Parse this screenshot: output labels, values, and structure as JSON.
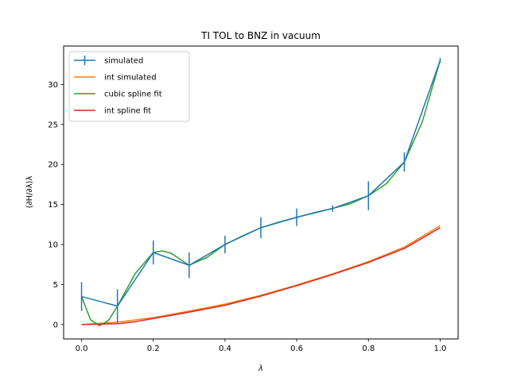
{
  "chart_data": {
    "type": "line",
    "title": "TI TOL to BNZ in vacuum",
    "xlabel": "λ",
    "ylabel": "⟨∂H/∂λ⟩λ",
    "xlim": [
      -0.05,
      1.05
    ],
    "ylim": [
      -1.8,
      34.8
    ],
    "x_ticks": [
      0.0,
      0.2,
      0.4,
      0.6,
      0.8,
      1.0
    ],
    "x_tick_labels": [
      "0.0",
      "0.2",
      "0.4",
      "0.6",
      "0.8",
      "1.0"
    ],
    "y_ticks": [
      0,
      5,
      10,
      15,
      20,
      25,
      30
    ],
    "y_tick_labels": [
      "0",
      "5",
      "10",
      "15",
      "20",
      "25",
      "30"
    ],
    "grid": false,
    "legend_position": "top-left",
    "series": [
      {
        "name": "simulated",
        "style": "errorbar",
        "color": "#1f77b4",
        "x": [
          0.0,
          0.1,
          0.2,
          0.3,
          0.4,
          0.5,
          0.6,
          0.7,
          0.8,
          0.9,
          1.0
        ],
        "y": [
          3.5,
          2.3,
          9.0,
          7.4,
          10.0,
          12.1,
          13.4,
          14.5,
          16.1,
          20.3,
          33.0
        ],
        "yerr": [
          1.8,
          2.1,
          1.5,
          1.6,
          1.1,
          1.3,
          1.1,
          0.4,
          1.8,
          1.2,
          0.3
        ]
      },
      {
        "name": "int simulated",
        "style": "line",
        "color": "#ff7f0e",
        "x": [
          0.0,
          0.1,
          0.2,
          0.3,
          0.4,
          0.5,
          0.6,
          0.7,
          0.8,
          0.9,
          1.0
        ],
        "y": [
          0.0,
          0.29,
          0.86,
          1.68,
          2.55,
          3.66,
          4.94,
          6.33,
          7.86,
          9.68,
          12.35
        ]
      },
      {
        "name": "cubic spline fit",
        "style": "line",
        "color": "#2ca02c",
        "x": [
          0.0,
          0.025,
          0.05,
          0.075,
          0.1,
          0.15,
          0.2,
          0.225,
          0.25,
          0.3,
          0.35,
          0.4,
          0.45,
          0.5,
          0.55,
          0.6,
          0.65,
          0.7,
          0.75,
          0.8,
          0.85,
          0.9,
          0.95,
          1.0
        ],
        "y": [
          3.5,
          0.6,
          -0.15,
          0.5,
          2.3,
          6.4,
          9.0,
          9.2,
          8.9,
          7.4,
          8.4,
          10.0,
          11.1,
          12.1,
          12.8,
          13.4,
          14.0,
          14.5,
          15.1,
          16.1,
          17.6,
          20.3,
          25.3,
          33.0
        ]
      },
      {
        "name": "int spline fit",
        "style": "line",
        "color": "#d62728",
        "x": [
          0.0,
          0.05,
          0.1,
          0.15,
          0.2,
          0.3,
          0.4,
          0.5,
          0.6,
          0.7,
          0.8,
          0.9,
          1.0
        ],
        "y": [
          0.0,
          0.05,
          0.1,
          0.35,
          0.75,
          1.55,
          2.4,
          3.55,
          4.85,
          6.25,
          7.75,
          9.5,
          12.1
        ]
      }
    ]
  }
}
